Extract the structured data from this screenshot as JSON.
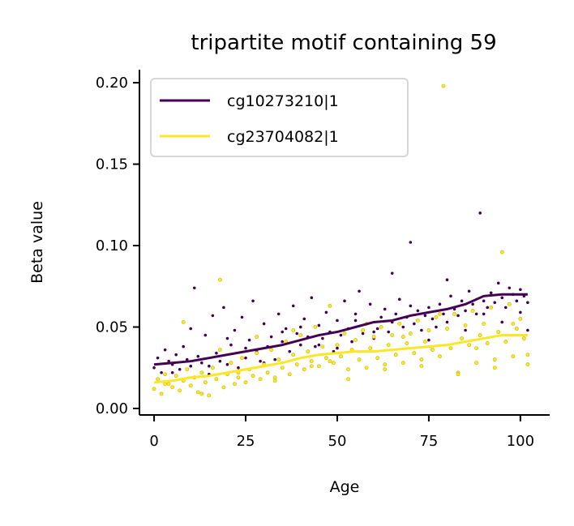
{
  "chart_data": {
    "type": "scatter",
    "title": "tripartite motif containing 59",
    "xlabel": "Age",
    "ylabel": "Beta value",
    "xlim": [
      -4,
      108
    ],
    "ylim": [
      -0.004,
      0.208
    ],
    "xticks": [
      0,
      25,
      50,
      75,
      100
    ],
    "xtick_labels": [
      "0",
      "25",
      "50",
      "75",
      "100"
    ],
    "yticks": [
      0.0,
      0.05,
      0.1,
      0.15,
      0.2
    ],
    "ytick_labels": [
      "0.00",
      "0.05",
      "0.10",
      "0.15",
      "0.20"
    ],
    "grid": false,
    "legend": {
      "position": "top-left"
    },
    "series": [
      {
        "name": "cg10273210|1",
        "color": "#440154",
        "trend": {
          "x": [
            0,
            5,
            10,
            15,
            20,
            25,
            30,
            35,
            40,
            45,
            50,
            55,
            60,
            65,
            70,
            75,
            80,
            85,
            90,
            95,
            102
          ],
          "y": [
            0.027,
            0.028,
            0.029,
            0.031,
            0.033,
            0.035,
            0.037,
            0.039,
            0.042,
            0.045,
            0.047,
            0.05,
            0.053,
            0.054,
            0.057,
            0.059,
            0.061,
            0.064,
            0.069,
            0.07,
            0.07
          ]
        },
        "points": {
          "x": [
            0,
            1,
            2,
            3,
            4,
            5,
            6,
            7,
            8,
            9,
            10,
            11,
            12,
            13,
            14,
            15,
            16,
            17,
            18,
            19,
            20,
            21,
            22,
            23,
            24,
            25,
            26,
            27,
            28,
            29,
            30,
            31,
            32,
            33,
            34,
            35,
            36,
            37,
            38,
            39,
            40,
            41,
            42,
            43,
            44,
            45,
            46,
            47,
            48,
            49,
            50,
            51,
            52,
            53,
            54,
            55,
            56,
            57,
            58,
            59,
            60,
            61,
            62,
            63,
            64,
            65,
            66,
            67,
            68,
            69,
            70,
            71,
            72,
            73,
            74,
            75,
            76,
            77,
            78,
            79,
            80,
            81,
            82,
            83,
            84,
            85,
            86,
            87,
            88,
            89,
            90,
            91,
            92,
            93,
            94,
            95,
            96,
            97,
            98,
            99,
            100,
            101,
            102,
            5,
            10,
            15,
            20,
            25,
            30,
            35,
            40,
            45,
            50,
            55,
            60,
            65,
            70,
            75,
            80,
            85,
            90,
            95,
            100,
            102
          ],
          "y": [
            0.025,
            0.031,
            0.022,
            0.036,
            0.029,
            0.027,
            0.033,
            0.024,
            0.038,
            0.03,
            0.026,
            0.074,
            0.032,
            0.028,
            0.045,
            0.021,
            0.057,
            0.034,
            0.029,
            0.062,
            0.027,
            0.039,
            0.048,
            0.025,
            0.056,
            0.031,
            0.042,
            0.066,
            0.035,
            0.029,
            0.052,
            0.038,
            0.044,
            0.03,
            0.058,
            0.041,
            0.049,
            0.035,
            0.063,
            0.046,
            0.039,
            0.055,
            0.044,
            0.068,
            0.038,
            0.051,
            0.043,
            0.059,
            0.047,
            0.035,
            0.054,
            0.045,
            0.066,
            0.049,
            0.041,
            0.058,
            0.072,
            0.046,
            0.052,
            0.064,
            0.043,
            0.049,
            0.056,
            0.061,
            0.047,
            0.053,
            0.058,
            0.067,
            0.05,
            0.056,
            0.102,
            0.052,
            0.06,
            0.048,
            0.057,
            0.062,
            0.055,
            0.05,
            0.064,
            0.058,
            0.053,
            0.069,
            0.061,
            0.057,
            0.066,
            0.06,
            0.072,
            0.064,
            0.058,
            0.12,
            0.066,
            0.062,
            0.071,
            0.065,
            0.077,
            0.068,
            0.062,
            0.074,
            0.07,
            0.066,
            0.073,
            0.069,
            0.065,
            0.022,
            0.049,
            0.026,
            0.043,
            0.037,
            0.028,
            0.047,
            0.05,
            0.039,
            0.037,
            0.054,
            0.047,
            0.083,
            0.063,
            0.042,
            0.079,
            0.048,
            0.058,
            0.053,
            0.059,
            0.048
          ]
        }
      },
      {
        "name": "cg23704082|1",
        "color": "#fde725",
        "trend": {
          "x": [
            0,
            5,
            10,
            15,
            20,
            25,
            30,
            35,
            40,
            45,
            50,
            55,
            60,
            65,
            70,
            75,
            80,
            85,
            90,
            95,
            102
          ],
          "y": [
            0.016,
            0.017,
            0.019,
            0.02,
            0.022,
            0.024,
            0.026,
            0.028,
            0.031,
            0.033,
            0.034,
            0.035,
            0.035,
            0.036,
            0.037,
            0.038,
            0.039,
            0.041,
            0.043,
            0.045,
            0.045
          ]
        },
        "points": {
          "x": [
            0,
            1,
            2,
            3,
            4,
            5,
            6,
            7,
            8,
            9,
            10,
            11,
            12,
            13,
            14,
            15,
            16,
            17,
            18,
            19,
            20,
            21,
            22,
            23,
            24,
            25,
            26,
            27,
            28,
            29,
            30,
            31,
            32,
            33,
            34,
            35,
            36,
            37,
            38,
            39,
            40,
            41,
            42,
            43,
            44,
            45,
            46,
            47,
            48,
            49,
            50,
            51,
            52,
            53,
            54,
            55,
            56,
            57,
            58,
            59,
            60,
            61,
            62,
            63,
            64,
            65,
            66,
            67,
            68,
            69,
            70,
            71,
            72,
            73,
            74,
            75,
            76,
            77,
            78,
            79,
            80,
            81,
            82,
            83,
            84,
            85,
            86,
            87,
            88,
            89,
            90,
            91,
            92,
            93,
            94,
            95,
            96,
            97,
            98,
            99,
            100,
            101,
            102,
            3,
            8,
            13,
            18,
            23,
            28,
            33,
            38,
            43,
            48,
            53,
            58,
            63,
            68,
            73,
            78,
            83,
            88,
            93,
            98,
            102
          ],
          "y": [
            0.012,
            0.018,
            0.009,
            0.021,
            0.015,
            0.013,
            0.02,
            0.011,
            0.017,
            0.024,
            0.014,
            0.019,
            0.01,
            0.022,
            0.016,
            0.008,
            0.025,
            0.018,
            0.079,
            0.013,
            0.021,
            0.028,
            0.015,
            0.019,
            0.031,
            0.016,
            0.024,
            0.02,
            0.034,
            0.018,
            0.027,
            0.022,
            0.036,
            0.019,
            0.03,
            0.025,
            0.041,
            0.021,
            0.033,
            0.027,
            0.045,
            0.024,
            0.035,
            0.029,
            0.05,
            0.026,
            0.038,
            0.031,
            0.063,
            0.028,
            0.039,
            0.032,
            0.046,
            0.024,
            0.036,
            0.042,
            0.03,
            0.048,
            0.025,
            0.037,
            0.044,
            0.031,
            0.05,
            0.027,
            0.039,
            0.045,
            0.033,
            0.052,
            0.028,
            0.04,
            0.046,
            0.034,
            0.054,
            0.03,
            0.041,
            0.048,
            0.036,
            0.056,
            0.032,
            0.198,
            0.049,
            0.037,
            0.058,
            0.022,
            0.043,
            0.051,
            0.039,
            0.06,
            0.028,
            0.045,
            0.052,
            0.04,
            0.062,
            0.03,
            0.047,
            0.096,
            0.041,
            0.064,
            0.032,
            0.049,
            0.055,
            0.043,
            0.033,
            0.015,
            0.053,
            0.009,
            0.036,
            0.022,
            0.044,
            0.017,
            0.048,
            0.026,
            0.029,
            0.018,
            0.052,
            0.024,
            0.044,
            0.026,
            0.058,
            0.021,
            0.037,
            0.025,
            0.052,
            0.027
          ]
        }
      }
    ]
  }
}
